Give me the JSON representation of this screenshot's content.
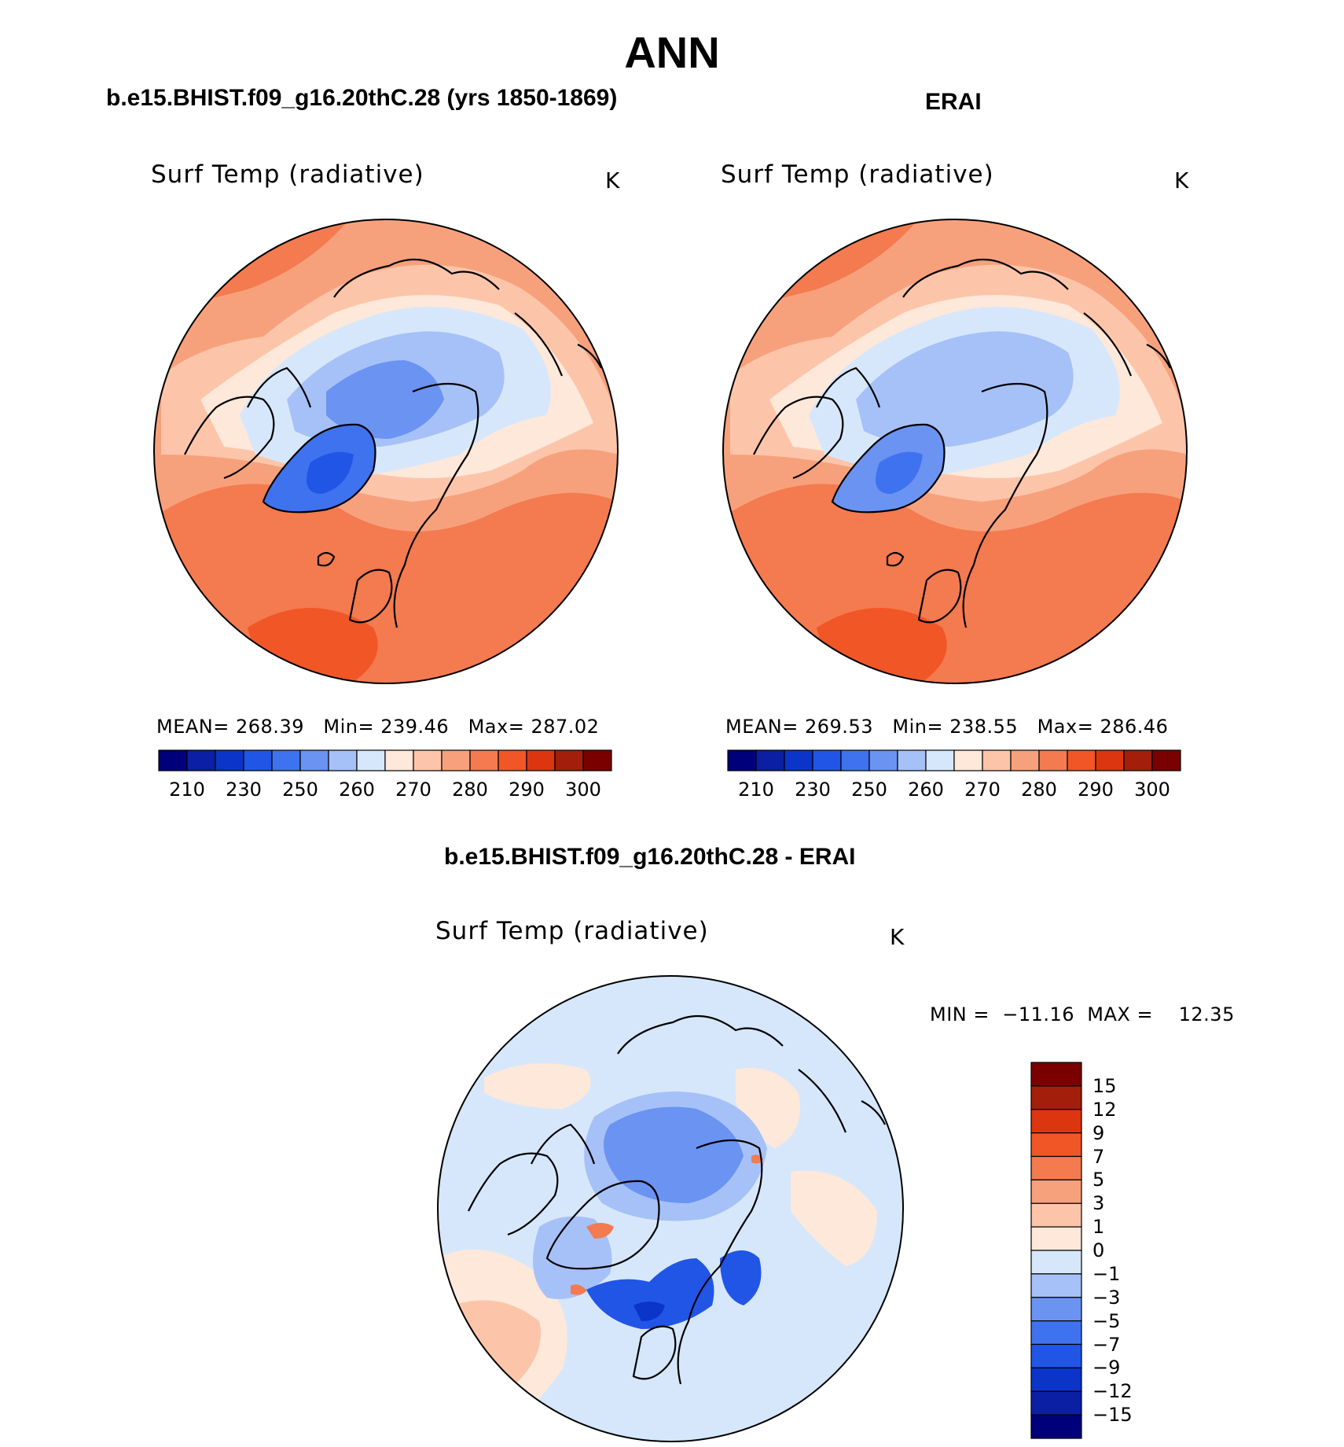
{
  "main_title": "ANN",
  "panels": [
    {
      "case_title": "b.e15.BHIST.f09_g16.20thC.28 (yrs 1850-1869)",
      "variable": "Surf Temp (radiative)",
      "units": "K",
      "stats": {
        "mean_label": "MEAN=",
        "mean": "268.39",
        "min_label": "Min=",
        "min": "239.46",
        "max_label": "Max=",
        "max": "287.02"
      }
    },
    {
      "case_title": "ERAI",
      "variable": "Surf Temp (radiative)",
      "units": "K",
      "stats": {
        "mean_label": "MEAN=",
        "mean": "269.53",
        "min_label": "Min=",
        "min": "238.55",
        "max_label": "Max=",
        "max": "286.46"
      }
    }
  ],
  "diff_panel": {
    "case_title": "b.e15.BHIST.f09_g16.20thC.28 - ERAI",
    "variable": "Surf Temp (radiative)",
    "units": "K",
    "minmax_text": "MIN =  −11.16  MAX =    12.35"
  },
  "colorbar_abs": {
    "colors": [
      "#00007a",
      "#0a1fa3",
      "#0b34c9",
      "#2155e6",
      "#3f72ee",
      "#6a93f2",
      "#a5c1f7",
      "#d6e7fb",
      "#fde8da",
      "#fcc5aa",
      "#f7a17c",
      "#f47a4f",
      "#f15627",
      "#dc3610",
      "#a31f0b",
      "#7a0000"
    ],
    "tick_labels": [
      "210",
      "230",
      "250",
      "260",
      "270",
      "280",
      "290",
      "300"
    ]
  },
  "colorbar_diff": {
    "colors": [
      "#7a0000",
      "#a31f0b",
      "#dc3610",
      "#f15627",
      "#f47a4f",
      "#f7a17c",
      "#fcc5aa",
      "#fde8da",
      "#d6e7fb",
      "#a5c1f7",
      "#6a93f2",
      "#3f72ee",
      "#2155e6",
      "#0b34c9",
      "#0a1fa3",
      "#00007a"
    ],
    "tick_labels": [
      "15",
      "12",
      "9",
      "7",
      "5",
      "3",
      "1",
      "0",
      "−1",
      "−3",
      "−5",
      "−7",
      "−9",
      "−12",
      "−15"
    ]
  }
}
